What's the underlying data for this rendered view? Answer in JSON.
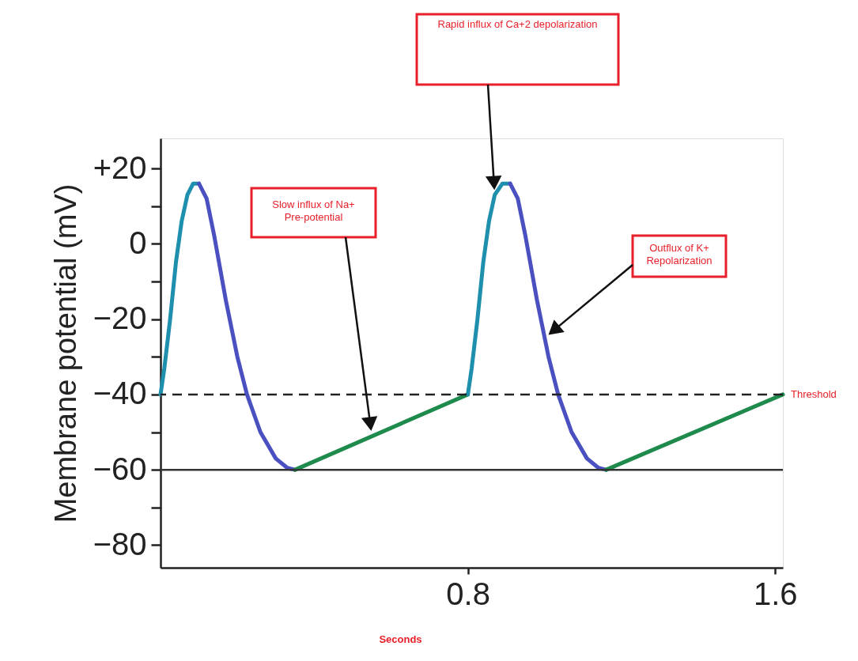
{
  "chart_data": {
    "type": "line",
    "xlabel": "Seconds",
    "ylabel": "Membrane potential (mV)",
    "xlim": [
      0,
      1.62
    ],
    "ylim": [
      -86,
      28
    ],
    "xticks": [
      0.8,
      1.6
    ],
    "yticks": [
      {
        "value": 20,
        "label": "+20"
      },
      {
        "value": 10,
        "label": null
      },
      0,
      {
        "value": -10,
        "label": null
      },
      {
        "value": -20,
        "label": "−20"
      },
      {
        "value": -30,
        "label": null
      },
      {
        "value": -40,
        "label": "−40"
      },
      {
        "value": -50,
        "label": null
      },
      {
        "value": -60,
        "label": "−60"
      },
      {
        "value": -70,
        "label": null
      },
      {
        "value": -80,
        "label": "−80"
      }
    ],
    "grid": false,
    "legend": false,
    "line_style": "solid",
    "series": [
      {
        "color": "#1f8fae",
        "x": [
          0,
          0.01,
          0.025,
          0.04,
          0.055,
          0.07,
          0.085,
          0.1
        ],
        "values": [
          -40,
          -33,
          -20,
          -5,
          6,
          13,
          16,
          16
        ]
      },
      {
        "color": "#4b50c0",
        "x": [
          0.1,
          0.12,
          0.14,
          0.17,
          0.2,
          0.225,
          0.26,
          0.3,
          0.33,
          0.35
        ],
        "values": [
          16,
          12,
          2,
          -15,
          -30,
          -40,
          -50,
          -57,
          -59.5,
          -60
        ]
      },
      {
        "color": "#1e8a4c",
        "x": [
          0.35,
          0.8
        ],
        "values": [
          -60,
          -40
        ]
      },
      {
        "color": "#1f8fae",
        "x": [
          0.8,
          0.81,
          0.825,
          0.84,
          0.855,
          0.87,
          0.89,
          0.91
        ],
        "values": [
          -40,
          -33,
          -20,
          -5,
          6,
          13,
          16,
          16
        ]
      },
      {
        "color": "#4b50c0",
        "x": [
          0.91,
          0.93,
          0.95,
          0.98,
          1.01,
          1.035,
          1.07,
          1.11,
          1.14,
          1.16
        ],
        "values": [
          16,
          12,
          2,
          -15,
          -30,
          -40,
          -50,
          -57,
          -59.5,
          -60
        ]
      },
      {
        "color": "#1e8a4c",
        "x": [
          1.16,
          1.62
        ],
        "values": [
          -60,
          -40
        ]
      }
    ],
    "ref_lines": [
      {
        "axis": "y",
        "value": -40,
        "label": "Threshold",
        "color": "#222222",
        "line_style": "dashed"
      },
      {
        "axis": "y",
        "value": -60,
        "label": null,
        "color": "#333333",
        "line_style": "solid"
      }
    ],
    "annotations": [
      "Rapid influx of Ca+2 depolarization",
      "Slow influx of Na+\nPre-potential",
      "Outflux of K+\nRepolarization"
    ]
  }
}
